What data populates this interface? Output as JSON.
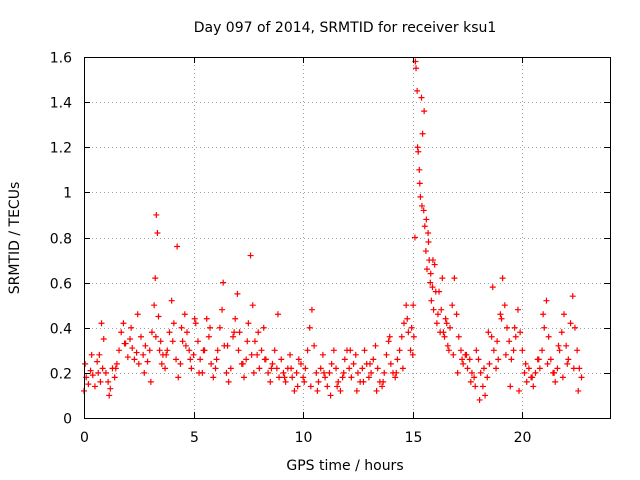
{
  "chart_data": {
    "type": "scatter",
    "title": "Day 097 of 2014, SRMTID for receiver ksu1",
    "xlabel": "GPS time / hours",
    "ylabel": "SRMTID / TECUs",
    "xlim": [
      0,
      24
    ],
    "ylim": [
      0,
      1.6
    ],
    "xticks": [
      0,
      5,
      10,
      15,
      20
    ],
    "xtick_labels": [
      "0",
      "5",
      "10",
      "15",
      "20"
    ],
    "yticks": [
      0,
      0.2,
      0.4,
      0.6,
      0.8,
      1.0,
      1.2,
      1.4,
      1.6
    ],
    "ytick_labels": [
      "0",
      "0.2",
      "0.4",
      "0.6",
      "0.8",
      "1",
      "1.2",
      "1.4",
      "1.6"
    ],
    "grid": true,
    "marker": "+",
    "series": [
      {
        "name": "ksu1",
        "color": "#ff0000",
        "x": [
          0.0,
          0.1,
          0.2,
          0.3,
          0.4,
          0.5,
          0.6,
          0.7,
          0.8,
          0.9,
          1.0,
          1.1,
          1.2,
          1.3,
          1.4,
          1.5,
          1.6,
          1.7,
          1.8,
          1.9,
          2.0,
          2.1,
          2.2,
          2.3,
          2.4,
          2.5,
          2.6,
          2.7,
          2.8,
          2.9,
          3.0,
          3.1,
          3.2,
          3.25,
          3.3,
          3.35,
          3.4,
          3.5,
          3.6,
          3.7,
          3.8,
          3.9,
          4.0,
          4.1,
          4.2,
          4.3,
          4.4,
          4.5,
          4.6,
          4.7,
          4.8,
          4.9,
          5.0,
          5.1,
          5.2,
          5.3,
          5.4,
          5.5,
          5.6,
          5.7,
          5.8,
          5.9,
          6.0,
          6.1,
          6.2,
          6.3,
          6.4,
          6.5,
          6.6,
          6.7,
          6.8,
          6.9,
          7.0,
          7.1,
          7.2,
          7.3,
          7.4,
          7.5,
          7.6,
          7.7,
          7.8,
          7.9,
          8.0,
          8.1,
          8.2,
          8.3,
          8.4,
          8.5,
          8.6,
          8.7,
          8.8,
          8.9,
          9.0,
          9.1,
          9.2,
          9.3,
          9.4,
          9.5,
          9.6,
          9.7,
          9.8,
          9.9,
          10.0,
          10.1,
          10.2,
          10.3,
          10.4,
          10.5,
          10.6,
          10.7,
          10.8,
          10.9,
          11.0,
          11.1,
          11.2,
          11.3,
          11.4,
          11.5,
          11.6,
          11.7,
          11.8,
          11.9,
          12.0,
          12.1,
          12.2,
          12.3,
          12.4,
          12.5,
          12.6,
          12.7,
          12.8,
          12.9,
          13.0,
          13.1,
          13.2,
          13.3,
          13.4,
          13.5,
          13.6,
          13.7,
          13.8,
          13.9,
          14.0,
          14.1,
          14.2,
          14.3,
          14.4,
          14.5,
          14.6,
          14.7,
          14.8,
          14.9,
          15.0,
          15.05,
          15.1,
          15.15,
          15.2,
          15.25,
          15.3,
          15.35,
          15.4,
          15.45,
          15.5,
          15.55,
          15.6,
          15.65,
          15.7,
          15.75,
          15.8,
          15.85,
          15.9,
          15.95,
          16.0,
          16.1,
          16.2,
          16.3,
          16.4,
          16.5,
          16.6,
          16.7,
          16.8,
          16.9,
          17.0,
          17.1,
          17.2,
          17.3,
          17.4,
          17.5,
          17.6,
          17.7,
          17.8,
          17.9,
          18.0,
          18.1,
          18.2,
          18.3,
          18.4,
          18.5,
          18.6,
          18.7,
          18.8,
          18.9,
          19.0,
          19.1,
          19.2,
          19.3,
          19.4,
          19.5,
          19.6,
          19.7,
          19.8,
          19.9,
          20.0,
          20.1,
          20.2,
          20.3,
          20.4,
          20.5,
          20.6,
          20.7,
          20.8,
          20.9,
          21.0,
          21.1,
          21.2,
          21.3,
          21.4,
          21.5,
          21.6,
          21.7,
          21.8,
          21.9,
          22.0,
          22.1,
          22.2,
          22.3,
          22.4,
          22.5,
          22.6,
          22.7,
          0.05,
          0.35,
          0.65,
          0.75,
          0.85,
          1.15,
          1.45,
          1.85,
          2.15,
          2.45,
          2.75,
          3.05,
          3.28,
          3.45,
          3.55,
          3.75,
          4.05,
          4.25,
          4.45,
          4.65,
          4.85,
          5.05,
          5.25,
          5.45,
          5.75,
          6.05,
          6.35,
          6.55,
          6.85,
          7.05,
          7.25,
          7.45,
          7.65,
          7.75,
          7.95,
          8.25,
          8.55,
          8.85,
          9.15,
          9.45,
          9.75,
          10.05,
          10.35,
          10.65,
          10.95,
          11.25,
          11.55,
          11.85,
          12.15,
          12.45,
          12.75,
          13.05,
          13.35,
          13.65,
          13.95,
          14.25,
          14.55,
          14.75,
          14.95,
          15.02,
          15.12,
          15.22,
          15.32,
          15.42,
          15.52,
          15.62,
          15.72,
          15.82,
          15.92,
          16.05,
          16.15,
          16.25,
          16.35,
          16.45,
          16.55,
          16.65,
          16.85,
          17.05,
          17.25,
          17.45,
          17.65,
          17.85,
          18.05,
          18.25,
          18.45,
          18.65,
          18.85,
          19.05,
          19.25,
          19.45,
          19.65,
          19.85,
          20.15,
          20.45,
          20.75,
          20.95,
          21.15,
          21.45,
          21.65,
          21.85,
          22.05,
          22.35,
          22.55
        ],
        "y": [
          0.12,
          0.18,
          0.15,
          0.21,
          0.19,
          0.14,
          0.25,
          0.28,
          0.42,
          0.35,
          0.2,
          0.16,
          0.13,
          0.22,
          0.18,
          0.24,
          0.3,
          0.38,
          0.42,
          0.33,
          0.27,
          0.35,
          0.31,
          0.26,
          0.29,
          0.24,
          0.36,
          0.28,
          0.32,
          0.25,
          0.3,
          0.38,
          0.5,
          0.62,
          0.9,
          0.82,
          0.45,
          0.34,
          0.28,
          0.22,
          0.3,
          0.38,
          0.52,
          0.42,
          0.26,
          0.18,
          0.24,
          0.34,
          0.46,
          0.38,
          0.3,
          0.22,
          0.28,
          0.42,
          0.34,
          0.26,
          0.2,
          0.3,
          0.44,
          0.36,
          0.24,
          0.18,
          0.22,
          0.3,
          0.4,
          0.48,
          0.32,
          0.2,
          0.16,
          0.22,
          0.36,
          0.44,
          0.55,
          0.38,
          0.24,
          0.18,
          0.26,
          0.42,
          0.72,
          0.5,
          0.34,
          0.28,
          0.22,
          0.3,
          0.4,
          0.26,
          0.2,
          0.16,
          0.24,
          0.3,
          0.22,
          0.18,
          0.26,
          0.2,
          0.16,
          0.22,
          0.28,
          0.18,
          0.12,
          0.2,
          0.26,
          0.24,
          0.18,
          0.22,
          0.3,
          0.4,
          0.48,
          0.32,
          0.2,
          0.16,
          0.22,
          0.28,
          0.18,
          0.14,
          0.2,
          0.24,
          0.3,
          0.22,
          0.16,
          0.12,
          0.18,
          0.26,
          0.3,
          0.22,
          0.18,
          0.24,
          0.28,
          0.2,
          0.16,
          0.22,
          0.3,
          0.24,
          0.18,
          0.2,
          0.26,
          0.32,
          0.22,
          0.16,
          0.14,
          0.2,
          0.28,
          0.34,
          0.24,
          0.2,
          0.18,
          0.26,
          0.3,
          0.36,
          0.42,
          0.5,
          0.38,
          0.3,
          0.28,
          0.36,
          0.8,
          1.55,
          1.45,
          1.18,
          1.1,
          0.98,
          1.42,
          1.26,
          0.92,
          0.85,
          0.74,
          0.66,
          0.82,
          0.7,
          0.6,
          0.52,
          0.58,
          0.48,
          0.68,
          0.42,
          0.56,
          0.48,
          0.38,
          0.44,
          0.32,
          0.4,
          0.5,
          0.62,
          0.46,
          0.36,
          0.3,
          0.24,
          0.28,
          0.22,
          0.26,
          0.2,
          0.18,
          0.3,
          0.26,
          0.2,
          0.14,
          0.1,
          0.18,
          0.24,
          0.36,
          0.3,
          0.22,
          0.26,
          0.46,
          0.62,
          0.5,
          0.4,
          0.34,
          0.26,
          0.3,
          0.36,
          0.48,
          0.38,
          0.3,
          0.2,
          0.16,
          0.22,
          0.18,
          0.14,
          0.2,
          0.26,
          0.22,
          0.3,
          0.4,
          0.52,
          0.36,
          0.26,
          0.2,
          0.16,
          0.22,
          0.3,
          0.38,
          0.46,
          0.32,
          0.26,
          0.42,
          0.54,
          0.4,
          0.3,
          0.22,
          0.18,
          0.24,
          0.28,
          0.2,
          0.16,
          0.22,
          0.1,
          0.22,
          0.33,
          0.4,
          0.46,
          0.2,
          0.16,
          0.36,
          0.3,
          0.24,
          0.28,
          0.34,
          0.76,
          0.4,
          0.32,
          0.26,
          0.44,
          0.2,
          0.3,
          0.4,
          0.26,
          0.6,
          0.32,
          0.38,
          0.3,
          0.24,
          0.34,
          0.28,
          0.2,
          0.38,
          0.26,
          0.22,
          0.46,
          0.18,
          0.22,
          0.14,
          0.16,
          0.14,
          0.12,
          0.2,
          0.1,
          0.14,
          0.2,
          0.3,
          0.12,
          0.16,
          0.24,
          0.12,
          0.16,
          0.36,
          0.2,
          0.22,
          0.44,
          0.4,
          0.5,
          1.58,
          1.2,
          1.04,
          0.94,
          1.36,
          0.88,
          0.78,
          0.64,
          0.7,
          0.56,
          0.46,
          0.38,
          0.62,
          0.36,
          0.42,
          0.3,
          0.28,
          0.2,
          0.26,
          0.28,
          0.16,
          0.14,
          0.08,
          0.22,
          0.38,
          0.58,
          0.34,
          0.44,
          0.28,
          0.14,
          0.4,
          0.12,
          0.24,
          0.18,
          0.26,
          0.46,
          0.24,
          0.2,
          0.32,
          0.18,
          0.24,
          0.22,
          0.12
        ]
      }
    ]
  }
}
